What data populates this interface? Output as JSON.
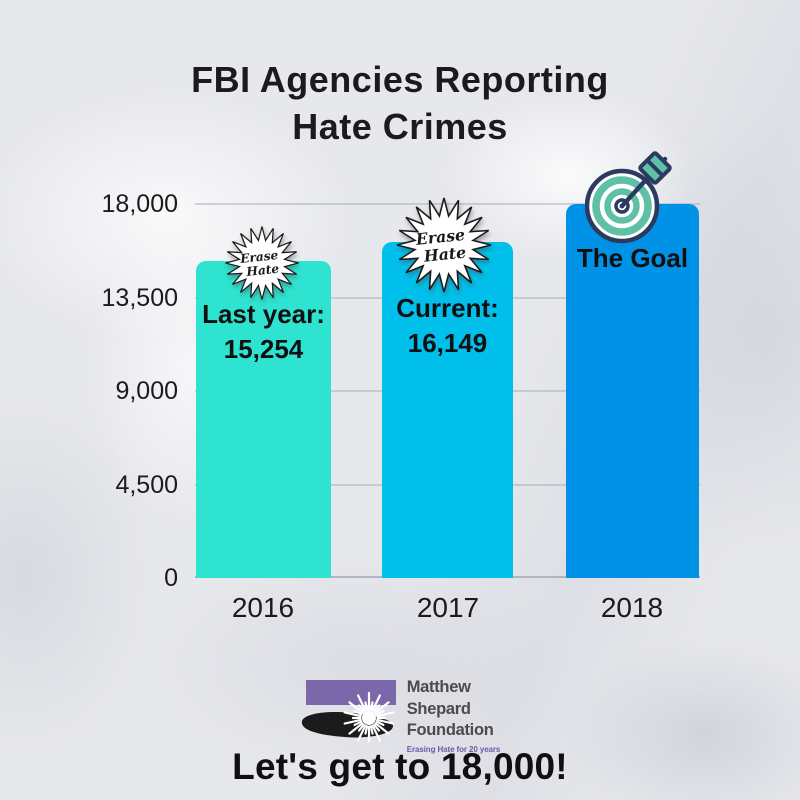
{
  "title": {
    "line1": "FBI Agencies Reporting",
    "line2": "Hate Crimes"
  },
  "chart_data": {
    "type": "bar",
    "title": "FBI Agencies Reporting Hate Crimes",
    "categories": [
      "2016",
      "2017",
      "2018"
    ],
    "values": [
      15254,
      16149,
      18000
    ],
    "bar_colors": [
      "#2ee3d0",
      "#00bfea",
      "#0092e6"
    ],
    "bar_labels": [
      [
        "Last year:",
        "15,254"
      ],
      [
        "Current:",
        "16,149"
      ],
      [
        "The Goal",
        ""
      ]
    ],
    "y_tick_labels": [
      "18,000",
      "13,500",
      "9,000",
      "4,500",
      "0"
    ],
    "y_tick_values": [
      18000,
      13500,
      9000,
      4500,
      0
    ],
    "ylim": [
      0,
      18000
    ],
    "grid": "horizontal",
    "legend": "none",
    "badges": [
      {
        "bar": "2016",
        "type": "erase-hate-starburst"
      },
      {
        "bar": "2017",
        "type": "erase-hate-starburst"
      },
      {
        "bar": "2018",
        "type": "bullseye-target-with-dart"
      }
    ]
  },
  "badge": {
    "line1": "Erase",
    "line2": "Hate"
  },
  "icons": {
    "target_navy": "#2b3a5e",
    "target_teal": "#5fc0a8"
  },
  "logo": {
    "line1": "Matthew",
    "line2": "Shepard",
    "line3": "Foundation",
    "tagline": "Erasing Hate for 20 years",
    "purple": "#7a68aa",
    "black": "#1b1b1b",
    "tagline_color": "#6c5ca6"
  },
  "footer": {
    "cta": "Let's get to 18,000!"
  }
}
